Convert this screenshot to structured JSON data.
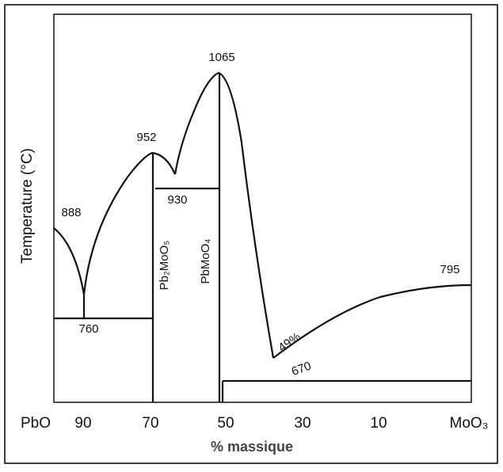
{
  "diagram": {
    "y_axis_label": "Temperature (°C)",
    "x_axis_label": "% massique",
    "x_labels": [
      "PbO",
      "90",
      "70",
      "50",
      "30",
      "10",
      "MoO₃"
    ],
    "points": [
      "888",
      "760",
      "952",
      "930",
      "1065",
      "795",
      "670",
      "49%"
    ],
    "phases": [
      "Pb₂MoO₅",
      "PbMoO₄"
    ]
  }
}
